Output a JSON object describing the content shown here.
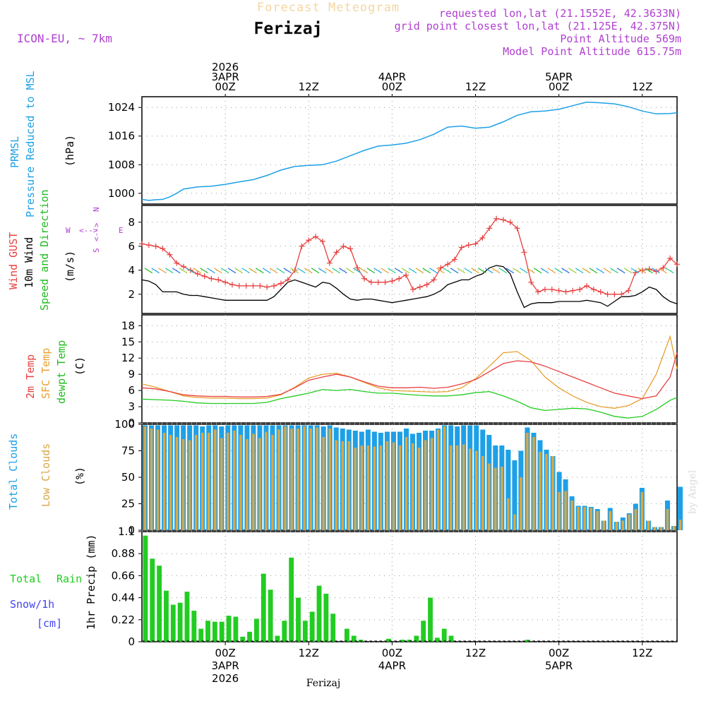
{
  "header": {
    "subtitle": "Forecast Meteogram",
    "location": "Ferizaj",
    "model": "ICON-EU, ~ 7km",
    "requested": "requested lon,lat (21.1552E, 42.3633N)",
    "grid_point": "grid point closest lon,lat (21.125E, 42.375N)",
    "point_altitude": "Point Altitude 569m",
    "model_altitude": "Model Point Altitude 615.75m",
    "watermark": "by Angel",
    "footer_location": "Ferizaj"
  },
  "time_axis": {
    "top_labels": [
      {
        "hour": 12,
        "lines": [
          "2026",
          "3APR",
          "00Z"
        ]
      },
      {
        "hour": 24,
        "lines": [
          "12Z"
        ]
      },
      {
        "hour": 36,
        "lines": [
          "4APR",
          "00Z"
        ]
      },
      {
        "hour": 48,
        "lines": [
          "12Z"
        ]
      },
      {
        "hour": 60,
        "lines": [
          "5APR",
          "00Z"
        ]
      },
      {
        "hour": 72,
        "lines": [
          "12Z"
        ]
      }
    ],
    "bottom_labels": [
      {
        "hour": 12,
        "lines": [
          "00Z",
          "3APR",
          "2026"
        ]
      },
      {
        "hour": 24,
        "lines": [
          "12Z"
        ]
      },
      {
        "hour": 36,
        "lines": [
          "00Z",
          "4APR"
        ]
      },
      {
        "hour": 48,
        "lines": [
          "12Z"
        ]
      },
      {
        "hour": 60,
        "lines": [
          "00Z",
          "5APR"
        ]
      },
      {
        "hour": 72,
        "lines": [
          "12Z"
        ]
      }
    ],
    "hour_range": [
      0,
      77
    ]
  },
  "colors": {
    "pressure": "#1ea0e6",
    "gust": "#e84040",
    "wind": "#000000",
    "wind_label": "#22bb22",
    "temp": "#e84040",
    "sfc": "#e8a030",
    "dewpt": "#22cc22",
    "total_clouds": "#1ea0e6",
    "low_clouds": "#d8a848",
    "rain": "#22cc22",
    "snow": "#4444ee",
    "purple": "#b040d0",
    "compass": "#b040d0"
  },
  "chart_data": [
    {
      "type": "line",
      "panel": "pressure",
      "title_lines": [
        "PRMSL",
        "Pressure Reduced to MSL"
      ],
      "ylabel": "(hPa)",
      "ylim": [
        997,
        1027
      ],
      "yticks": [
        1000,
        1008,
        1016,
        1024
      ],
      "x": [
        0,
        1,
        2,
        3,
        4,
        5,
        6,
        8,
        10,
        12,
        14,
        16,
        18,
        20,
        22,
        24,
        26,
        28,
        30,
        32,
        34,
        36,
        38,
        40,
        42,
        44,
        46,
        48,
        50,
        52,
        54,
        56,
        58,
        60,
        62,
        64,
        66,
        68,
        70,
        72,
        74,
        76,
        77
      ],
      "series": [
        {
          "name": "PRMSL",
          "values": [
            998.3,
            998.0,
            998.2,
            998.3,
            999.0,
            1000,
            1001.2,
            1001.8,
            1002.0,
            1002.5,
            1003.2,
            1003.8,
            1005.0,
            1006.5,
            1007.5,
            1007.8,
            1008.0,
            1009.0,
            1010.5,
            1012.0,
            1013.2,
            1013.5,
            1014.0,
            1015.0,
            1016.5,
            1018.5,
            1018.8,
            1018.2,
            1018.5,
            1020.0,
            1021.8,
            1022.8,
            1023.0,
            1023.5,
            1024.5,
            1025.5,
            1025.3,
            1025.0,
            1024.2,
            1023.0,
            1022.2,
            1022.3,
            1022.5
          ]
        }
      ]
    },
    {
      "type": "line",
      "panel": "wind",
      "title_lines": [
        "Wind GUST",
        "10m Wind",
        "Speed and Direction"
      ],
      "ylabel": "(m/s)",
      "compass": {
        "n": "N",
        "s": "S",
        "e": "E",
        "w": "W"
      },
      "ylim": [
        0.4,
        9.4
      ],
      "yticks": [
        2,
        4,
        6,
        8
      ],
      "x": [
        0,
        1,
        2,
        3,
        4,
        5,
        6,
        7,
        8,
        9,
        10,
        11,
        12,
        13,
        14,
        15,
        16,
        17,
        18,
        19,
        20,
        21,
        22,
        23,
        24,
        25,
        26,
        27,
        28,
        29,
        30,
        31,
        32,
        33,
        34,
        35,
        36,
        37,
        38,
        39,
        40,
        41,
        42,
        43,
        44,
        45,
        46,
        47,
        48,
        49,
        50,
        51,
        52,
        53,
        54,
        55,
        56,
        57,
        58,
        59,
        60,
        61,
        62,
        63,
        64,
        65,
        66,
        67,
        68,
        69,
        70,
        71,
        72,
        73,
        74,
        75,
        76,
        77
      ],
      "series": [
        {
          "name": "Wind GUST",
          "values": [
            6.2,
            6.1,
            6.0,
            5.8,
            5.3,
            4.6,
            4.3,
            4.0,
            3.7,
            3.5,
            3.3,
            3.2,
            3.0,
            2.8,
            2.7,
            2.7,
            2.7,
            2.7,
            2.6,
            2.7,
            2.9,
            3.2,
            4.0,
            6.0,
            6.5,
            6.8,
            6.4,
            4.6,
            5.5,
            6.0,
            5.8,
            4.2,
            3.3,
            3.0,
            3.0,
            3.0,
            3.1,
            3.3,
            3.6,
            2.4,
            2.6,
            2.8,
            3.2,
            4.2,
            4.5,
            4.9,
            5.9,
            6.1,
            6.2,
            6.7,
            7.5,
            8.3,
            8.2,
            8.0,
            7.5,
            5.5,
            3.0,
            2.2,
            2.4,
            2.4,
            2.3,
            2.2,
            2.3,
            2.4,
            2.7,
            2.4,
            2.2,
            2.0,
            2.0,
            2.0,
            2.3,
            3.8,
            4.0,
            4.1,
            3.9,
            4.2,
            5.0,
            4.5
          ]
        },
        {
          "name": "10m Wind",
          "values": [
            3.2,
            3.1,
            2.8,
            2.2,
            2.2,
            2.2,
            2.0,
            1.9,
            1.9,
            1.8,
            1.7,
            1.6,
            1.5,
            1.5,
            1.5,
            1.5,
            1.5,
            1.5,
            1.5,
            1.8,
            2.4,
            3.0,
            3.2,
            3.0,
            2.8,
            2.6,
            3.0,
            2.9,
            2.5,
            2.0,
            1.6,
            1.5,
            1.6,
            1.6,
            1.5,
            1.4,
            1.3,
            1.4,
            1.5,
            1.6,
            1.7,
            1.8,
            2.0,
            2.3,
            2.8,
            3.0,
            3.2,
            3.2,
            3.5,
            3.7,
            4.2,
            4.4,
            4.3,
            3.7,
            2.2,
            0.9,
            1.2,
            1.3,
            1.3,
            1.3,
            1.4,
            1.4,
            1.4,
            1.4,
            1.5,
            1.4,
            1.3,
            1.0,
            1.4,
            1.8,
            1.8,
            1.9,
            2.2,
            2.6,
            2.4,
            1.8,
            1.4,
            1.2
          ]
        }
      ]
    },
    {
      "type": "line",
      "panel": "temperature",
      "title_lines": [
        "2m Temp",
        "SFC Temp",
        "dewpt Temp"
      ],
      "ylabel": "(C)",
      "ylim": [
        0,
        20
      ],
      "yticks": [
        0,
        3,
        6,
        9,
        12,
        15,
        18
      ],
      "x": [
        0,
        2,
        4,
        6,
        8,
        10,
        12,
        14,
        16,
        18,
        20,
        22,
        24,
        26,
        28,
        30,
        32,
        34,
        36,
        38,
        40,
        42,
        44,
        46,
        48,
        50,
        52,
        54,
        56,
        58,
        60,
        62,
        64,
        66,
        68,
        70,
        72,
        74,
        76,
        77
      ],
      "series": [
        {
          "name": "2m Temp",
          "values": [
            6.5,
            6.3,
            5.8,
            5.2,
            5.0,
            4.9,
            4.9,
            4.8,
            4.8,
            4.9,
            5.3,
            6.5,
            7.9,
            8.5,
            9.0,
            8.5,
            7.6,
            6.8,
            6.5,
            6.5,
            6.6,
            6.4,
            6.6,
            7.2,
            8.0,
            9.5,
            11.0,
            11.5,
            11.3,
            10.5,
            9.5,
            8.5,
            7.5,
            6.5,
            5.5,
            5.0,
            4.5,
            5.0,
            8.5,
            13.0
          ]
        },
        {
          "name": "SFC Temp",
          "values": [
            7.2,
            6.6,
            5.8,
            5.0,
            4.7,
            4.6,
            4.6,
            4.5,
            4.5,
            4.6,
            5.2,
            6.6,
            8.3,
            9.0,
            9.2,
            8.5,
            7.5,
            6.5,
            6.0,
            5.9,
            5.8,
            5.7,
            5.8,
            6.5,
            8.2,
            10.5,
            13.0,
            13.2,
            11.5,
            8.5,
            6.5,
            5.0,
            3.8,
            3.0,
            2.7,
            3.2,
            4.5,
            9.0,
            16.0,
            10.0
          ]
        },
        {
          "name": "dewpt Temp",
          "values": [
            4.4,
            4.3,
            4.2,
            4.0,
            3.7,
            3.6,
            3.6,
            3.6,
            3.6,
            3.8,
            4.5,
            5.0,
            5.5,
            6.2,
            6.0,
            6.2,
            5.8,
            5.5,
            5.5,
            5.3,
            5.1,
            5.0,
            5.0,
            5.2,
            5.6,
            5.8,
            5.0,
            4.0,
            2.8,
            2.3,
            2.5,
            2.7,
            2.6,
            2.0,
            1.2,
            0.9,
            1.2,
            2.5,
            4.2,
            4.7
          ]
        }
      ]
    },
    {
      "type": "bar",
      "panel": "clouds",
      "title_lines": [
        "Total Clouds",
        "Low Clouds"
      ],
      "ylabel": "(%)",
      "ylim": [
        0,
        100
      ],
      "yticks": [
        0,
        25,
        50,
        75,
        100
      ],
      "categories_start_hour": 0.5,
      "series": [
        {
          "name": "Total Clouds",
          "values": [
            99,
            99,
            99,
            99,
            99,
            99,
            99,
            99,
            99,
            98,
            99,
            99,
            98,
            99,
            99,
            99,
            99,
            99,
            99,
            99,
            99,
            99,
            99,
            99,
            99,
            99,
            99,
            99,
            98,
            99,
            97,
            96,
            95,
            94,
            93,
            95,
            93,
            92,
            93,
            93,
            93,
            96,
            91,
            92,
            94,
            94,
            96,
            99,
            99,
            98,
            99,
            99,
            99,
            95,
            90,
            80,
            80,
            76,
            66,
            75,
            97,
            92,
            85,
            76,
            70,
            55,
            48,
            32,
            23,
            23,
            22,
            20,
            9,
            21,
            8,
            12,
            16,
            25,
            40,
            9,
            3,
            3,
            28,
            4,
            41
          ]
        },
        {
          "name": "Low Clouds",
          "values": [
            98,
            96,
            95,
            92,
            90,
            88,
            86,
            85,
            90,
            92,
            92,
            95,
            87,
            92,
            94,
            90,
            86,
            91,
            87,
            93,
            90,
            95,
            98,
            96,
            96,
            98,
            96,
            97,
            88,
            96,
            85,
            84,
            84,
            78,
            80,
            80,
            79,
            80,
            84,
            83,
            80,
            88,
            82,
            78,
            85,
            87,
            95,
            98,
            80,
            80,
            81,
            77,
            75,
            70,
            63,
            59,
            60,
            30,
            15,
            50,
            92,
            88,
            74,
            72,
            70,
            36,
            37,
            28,
            22,
            22,
            21,
            18,
            9,
            18,
            8,
            9,
            15,
            20,
            36,
            9,
            3,
            3,
            20,
            4,
            10
          ]
        }
      ]
    },
    {
      "type": "bar",
      "panel": "precip",
      "title_lines": [
        "Total",
        "Rain",
        "Snow/1h",
        "[cm]"
      ],
      "ylabel": "1hr Precip (mm)",
      "ylim": [
        0,
        1.1
      ],
      "yticks": [
        0,
        0.22,
        0.44,
        0.66,
        0.88,
        1.1
      ],
      "categories_start_hour": 0.5,
      "series": [
        {
          "name": "Total Rain",
          "values": [
            1.06,
            0.83,
            0.76,
            0.51,
            0.37,
            0.39,
            0.5,
            0.31,
            0.13,
            0.21,
            0.2,
            0.2,
            0.26,
            0.25,
            0.05,
            0.1,
            0.23,
            0.68,
            0.52,
            0.06,
            0.21,
            0.84,
            0.44,
            0.21,
            0.3,
            0.56,
            0.48,
            0.28,
            0.0,
            0.13,
            0.06,
            0.02,
            0.0,
            0.0,
            0.0,
            0.03,
            0.0,
            0.02,
            0.02,
            0.06,
            0.21,
            0.44,
            0.04,
            0.13,
            0.06,
            0.0,
            0.0,
            0.0,
            0.0,
            0.0,
            0.0,
            0.0,
            0.0,
            0.0,
            0.0,
            0.02,
            0.0,
            0.0,
            0.0,
            0.0,
            0.0,
            0.0,
            0.0,
            0.0,
            0.0,
            0.0,
            0.0,
            0.0,
            0.0,
            0.0,
            0.0,
            0.0,
            0.0,
            0.0,
            0.0,
            0.0,
            0.0
          ]
        }
      ]
    }
  ]
}
